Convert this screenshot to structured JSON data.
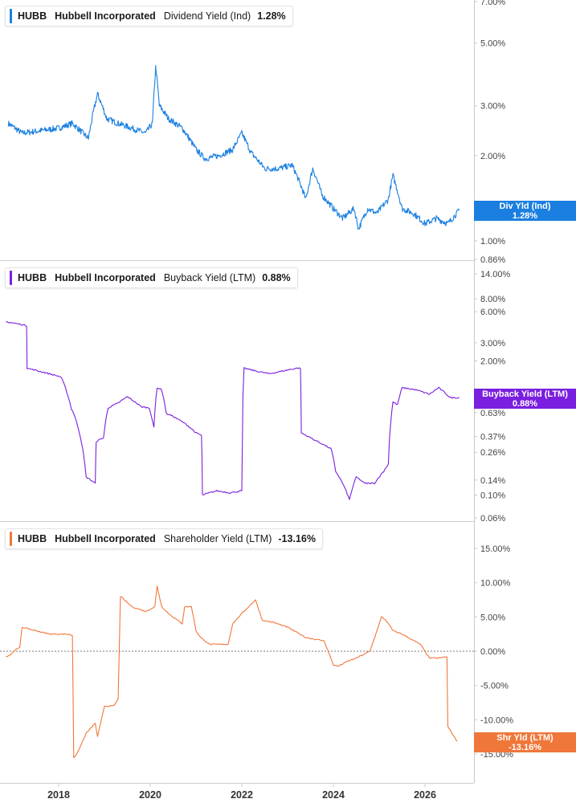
{
  "chart_data": [
    {
      "type": "line",
      "panel": "dividend",
      "ticker": "HUBB",
      "company": "Hubbell Incorporated",
      "metric": "Dividend Yield (Ind)",
      "current_value": "1.28%",
      "tag_label": "Div Yld (Ind)",
      "tag_value": "1.28%",
      "color": "#1a7fe0",
      "scale": "log",
      "ylim": [
        0.86,
        7.0
      ],
      "y_ticks": [
        {
          "v": 7.0,
          "label": "7.00%"
        },
        {
          "v": 5.0,
          "label": "5.00%"
        },
        {
          "v": 3.0,
          "label": "3.00%"
        },
        {
          "v": 2.0,
          "label": "2.00%"
        },
        {
          "v": 1.0,
          "label": "1.00%"
        },
        {
          "v": 0.86,
          "label": "0.86%"
        }
      ],
      "x": [
        2016.9,
        2017.2,
        2017.6,
        2018.0,
        2018.3,
        2018.65,
        2018.85,
        2019.05,
        2019.3,
        2019.6,
        2019.9,
        2020.05,
        2020.12,
        2020.2,
        2020.4,
        2020.7,
        2021.0,
        2021.2,
        2021.5,
        2021.8,
        2022.0,
        2022.2,
        2022.5,
        2022.8,
        2023.1,
        2023.4,
        2023.55,
        2023.75,
        2024.0,
        2024.2,
        2024.45,
        2024.55,
        2024.75,
        2024.95,
        2025.2,
        2025.3,
        2025.5,
        2025.75,
        2026.0,
        2026.25,
        2026.5,
        2026.75
      ],
      "values": [
        2.6,
        2.4,
        2.45,
        2.5,
        2.6,
        2.3,
        3.3,
        2.7,
        2.6,
        2.5,
        2.4,
        2.6,
        4.1,
        3.0,
        2.7,
        2.5,
        2.1,
        1.95,
        2.0,
        2.1,
        2.4,
        2.05,
        1.8,
        1.8,
        1.85,
        1.4,
        1.8,
        1.45,
        1.3,
        1.2,
        1.3,
        1.1,
        1.3,
        1.25,
        1.4,
        1.7,
        1.3,
        1.25,
        1.15,
        1.2,
        1.15,
        1.28
      ]
    },
    {
      "type": "line",
      "panel": "buyback",
      "ticker": "HUBB",
      "company": "Hubbell Incorporated",
      "metric": "Buyback Yield (LTM)",
      "current_value": "0.88%",
      "tag_label": "Buyback Yield (LTM)",
      "tag_value": "0.88%",
      "color": "#7a1fe0",
      "scale": "log",
      "ylim": [
        0.06,
        14.0
      ],
      "y_ticks": [
        {
          "v": 14.0,
          "label": "14.00%"
        },
        {
          "v": 8.0,
          "label": "8.00%"
        },
        {
          "v": 6.0,
          "label": "6.00%"
        },
        {
          "v": 3.0,
          "label": "3.00%"
        },
        {
          "v": 2.0,
          "label": "2.00%"
        },
        {
          "v": 0.63,
          "label": "0.63%"
        },
        {
          "v": 0.37,
          "label": "0.37%"
        },
        {
          "v": 0.26,
          "label": "0.26%"
        },
        {
          "v": 0.14,
          "label": "0.14%"
        },
        {
          "v": 0.1,
          "label": "0.10%"
        },
        {
          "v": 0.06,
          "label": "0.06%"
        }
      ],
      "x": [
        2016.85,
        2017.2,
        2017.3,
        2017.31,
        2017.8,
        2018.05,
        2018.28,
        2018.31,
        2018.6,
        2018.8,
        2018.82,
        2018.98,
        2019.08,
        2019.3,
        2019.5,
        2019.8,
        2019.98,
        2020.08,
        2020.15,
        2020.25,
        2020.35,
        2020.5,
        2020.8,
        2021.0,
        2021.12,
        2021.14,
        2021.45,
        2021.75,
        2022.0,
        2022.05,
        2022.3,
        2022.6,
        2022.9,
        2023.2,
        2023.28,
        2023.3,
        2023.6,
        2023.95,
        2024.05,
        2024.2,
        2024.35,
        2024.5,
        2024.68,
        2024.9,
        2025.1,
        2025.2,
        2025.3,
        2025.4,
        2025.5,
        2025.8,
        2026.1,
        2026.3,
        2026.55,
        2026.75
      ],
      "values": [
        4.8,
        4.5,
        4.4,
        1.7,
        1.5,
        1.4,
        0.68,
        0.65,
        0.15,
        0.13,
        0.33,
        0.36,
        0.7,
        0.78,
        0.9,
        0.72,
        0.7,
        0.45,
        1.1,
        1.05,
        0.62,
        0.58,
        0.48,
        0.4,
        0.38,
        0.1,
        0.11,
        0.105,
        0.11,
        1.7,
        1.6,
        1.5,
        1.6,
        1.7,
        1.7,
        0.4,
        0.34,
        0.28,
        0.17,
        0.13,
        0.09,
        0.15,
        0.13,
        0.13,
        0.17,
        0.2,
        0.8,
        0.75,
        1.1,
        1.05,
        0.95,
        1.1,
        0.88,
        0.88
      ]
    },
    {
      "type": "line",
      "panel": "shareholder",
      "ticker": "HUBB",
      "company": "Hubbell Incorporated",
      "metric": "Shareholder Yield (LTM)",
      "current_value": "-13.16%",
      "tag_label": "Shr Yld (LTM)",
      "tag_value": "-13.16%",
      "color": "#f0773a",
      "scale": "linear",
      "ylim": [
        -15.0,
        15.0
      ],
      "zero_line": 0,
      "y_ticks": [
        {
          "v": 15,
          "label": "15.00%"
        },
        {
          "v": 10,
          "label": "10.00%"
        },
        {
          "v": 5,
          "label": "5.00%"
        },
        {
          "v": 0,
          "label": "0.00%"
        },
        {
          "v": -5,
          "label": "-5.00%"
        },
        {
          "v": -10,
          "label": "-10.00%"
        },
        {
          "v": -15,
          "label": "-15.00%"
        }
      ],
      "x": [
        2016.85,
        2016.95,
        2017.05,
        2017.15,
        2017.2,
        2017.5,
        2017.8,
        2018.2,
        2018.3,
        2018.33,
        2018.4,
        2018.6,
        2018.8,
        2018.85,
        2019.0,
        2019.2,
        2019.3,
        2019.35,
        2019.6,
        2019.9,
        2020.1,
        2020.15,
        2020.25,
        2020.4,
        2020.7,
        2020.75,
        2020.9,
        2021.0,
        2021.1,
        2021.3,
        2021.7,
        2021.8,
        2022.0,
        2022.3,
        2022.45,
        2022.7,
        2023.0,
        2023.4,
        2023.8,
        2024.0,
        2024.1,
        2024.3,
        2024.5,
        2024.8,
        2025.05,
        2025.15,
        2025.3,
        2025.5,
        2025.9,
        2026.1,
        2026.3,
        2026.48,
        2026.5,
        2026.7
      ],
      "values": [
        -0.8,
        -0.5,
        0.2,
        0.5,
        3.5,
        3.0,
        2.5,
        2.5,
        2.3,
        -15.5,
        -15.0,
        -12.0,
        -10.5,
        -12.5,
        -8.0,
        -8.0,
        -7.0,
        8.0,
        6.5,
        5.8,
        6.5,
        9.5,
        6.5,
        5.5,
        4.0,
        6.5,
        6.5,
        3.0,
        2.0,
        1.0,
        1.0,
        4.0,
        5.5,
        7.5,
        4.5,
        4.2,
        3.5,
        2.0,
        1.5,
        -2.0,
        -2.2,
        -1.5,
        -1.0,
        0.0,
        5.0,
        4.5,
        3.0,
        2.5,
        1.0,
        -1.0,
        -1.0,
        -0.8,
        -11.0,
        -13.16
      ]
    }
  ],
  "x_axis": {
    "ticks": [
      {
        "v": 2018,
        "label": "2018"
      },
      {
        "v": 2020,
        "label": "2020"
      },
      {
        "v": 2022,
        "label": "2022"
      },
      {
        "v": 2024,
        "label": "2024"
      },
      {
        "v": 2026,
        "label": "2026"
      }
    ]
  }
}
